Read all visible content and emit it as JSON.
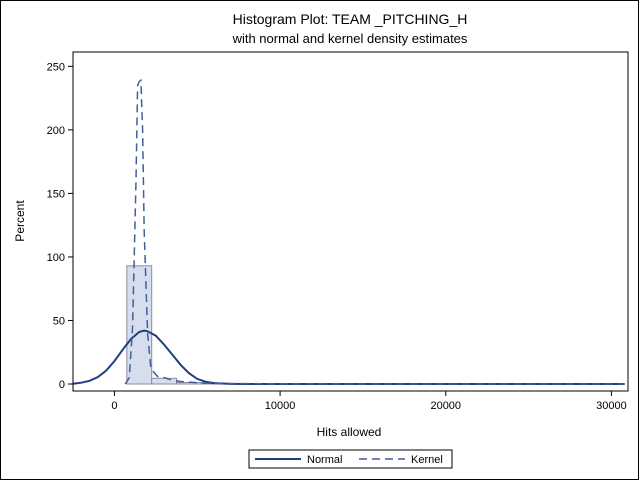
{
  "chart_data": {
    "type": "bar",
    "title": "Histogram Plot: TEAM _PITCHING_H",
    "subtitle": "with normal and kernel density estimates",
    "xlabel": "Hits allowed",
    "ylabel": "Percent",
    "xlim": [
      -2500,
      31000
    ],
    "ylim": [
      0,
      255
    ],
    "x_ticks": [
      0,
      10000,
      20000,
      30000
    ],
    "y_ticks": [
      0,
      50,
      100,
      150,
      200,
      250
    ],
    "histogram": {
      "bins": [
        {
          "x0": 750,
          "x1": 2250,
          "percent": 93
        },
        {
          "x0": 2250,
          "x1": 3750,
          "percent": 4.5
        },
        {
          "x0": 3750,
          "x1": 5250,
          "percent": 1.2
        },
        {
          "x0": 5250,
          "x1": 6750,
          "percent": 0.3
        },
        {
          "x0": 6750,
          "x1": 8250,
          "percent": 0.1
        },
        {
          "x0": 8250,
          "x1": 30750,
          "percent": 0.05
        }
      ],
      "fill": "#d6deee",
      "stroke": "#8c8c9c"
    },
    "series": [
      {
        "name": "Normal",
        "kind": "line",
        "color": "#1f3f7f",
        "dash": "solid",
        "x": [
          -2500,
          -2000,
          -1500,
          -1000,
          -500,
          0,
          500,
          1000,
          1500,
          1800,
          2000,
          2500,
          3000,
          3500,
          4000,
          4500,
          5000,
          5500,
          6000,
          7000,
          8000,
          10000,
          20000,
          30800
        ],
        "y": [
          0.2,
          1,
          2.5,
          5.5,
          10.5,
          18,
          27,
          35.5,
          41,
          42,
          41.5,
          38,
          31,
          23,
          15,
          8.5,
          4,
          1.8,
          0.7,
          0.1,
          0,
          0,
          0,
          0
        ]
      },
      {
        "name": "Kernel",
        "kind": "line",
        "color": "#3f5f9f",
        "dash": "dashed",
        "x": [
          650,
          900,
          1100,
          1300,
          1400,
          1500,
          1600,
          1700,
          1800,
          2000,
          2200,
          2600,
          3000,
          3500,
          4000,
          4500,
          5000,
          6000,
          8000,
          10000,
          20000,
          30800
        ],
        "y": [
          0,
          5,
          45,
          160,
          235,
          238,
          239,
          200,
          120,
          40,
          12,
          6,
          5,
          3,
          2,
          1.5,
          1,
          0.5,
          0.3,
          0.1,
          0,
          0
        ]
      }
    ],
    "legend": {
      "position": "bottom",
      "entries": [
        {
          "label": "Normal",
          "dash": "solid",
          "color": "#1f3f7f"
        },
        {
          "label": "Kernel",
          "dash": "dashed",
          "color": "#3f5f9f"
        }
      ]
    },
    "grid": false
  }
}
